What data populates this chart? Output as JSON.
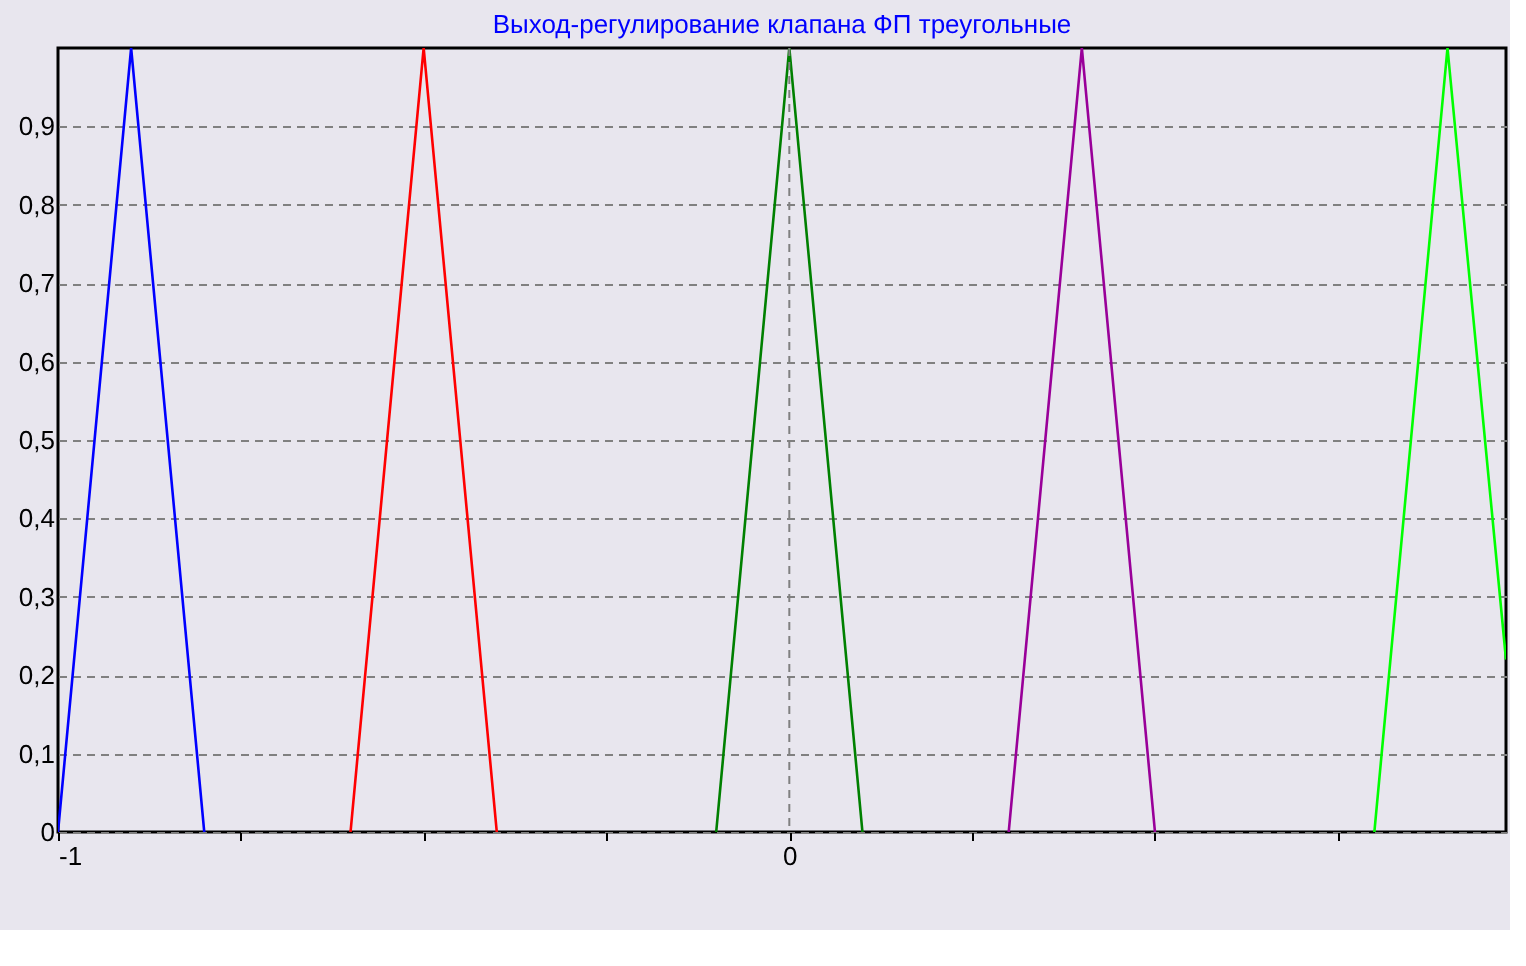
{
  "chart_data": {
    "type": "line",
    "title": "Выход-регулирование клапана ФП треугольные",
    "series": [
      {
        "color": "#0000ff",
        "x": [
          -1,
          -0.9,
          -0.8
        ],
        "values": [
          0,
          1,
          0
        ]
      },
      {
        "color": "#ff0000",
        "x": [
          -0.6,
          -0.5,
          -0.4
        ],
        "values": [
          0,
          1,
          0
        ]
      },
      {
        "color": "#008000",
        "x": [
          -0.1,
          0,
          0.1
        ],
        "values": [
          0,
          1,
          0
        ]
      },
      {
        "color": "#990099",
        "x": [
          0.3,
          0.4,
          0.5
        ],
        "values": [
          0,
          1,
          0
        ]
      },
      {
        "color": "#00ff00",
        "x": [
          0.8,
          0.9,
          0.98
        ],
        "values": [
          0,
          1,
          0.22
        ]
      }
    ],
    "xlim": [
      -1,
      0.98
    ],
    "xticks": [
      -1,
      {
        "value": -0.75,
        "label": null
      },
      {
        "value": -0.5,
        "label": null
      },
      {
        "value": -0.25,
        "label": null
      },
      0,
      {
        "value": 0.25,
        "label": null
      },
      {
        "value": 0.5,
        "label": null
      },
      {
        "value": 0.75,
        "label": null
      }
    ],
    "ylim": [
      0,
      1
    ],
    "yticks": [
      0,
      {
        "value": 0.1,
        "label": "0,1"
      },
      {
        "value": 0.2,
        "label": "0,2"
      },
      {
        "value": 0.3,
        "label": "0,3"
      },
      {
        "value": 0.4,
        "label": "0,4"
      },
      {
        "value": 0.5,
        "label": "0,5"
      },
      {
        "value": 0.6,
        "label": "0,6"
      },
      {
        "value": 0.7,
        "label": "0,7"
      },
      {
        "value": 0.8,
        "label": "0,8"
      },
      {
        "value": 0.9,
        "label": "0,9"
      }
    ],
    "grid": "y",
    "marker": "none",
    "line_style": "solid",
    "ref_lines": [
      {
        "axis": "x",
        "value": 0,
        "color": "#808080",
        "line_style": "dashed"
      }
    ]
  }
}
